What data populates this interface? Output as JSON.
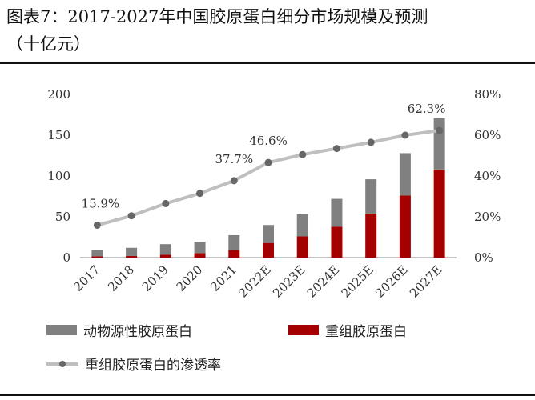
{
  "title": {
    "line1": "图表7：2017-2027年中国胶原蛋白细分市场规模及预测",
    "line2": "（十亿元）"
  },
  "chart_data": {
    "type": "bar",
    "stacked": true,
    "categories": [
      "2017",
      "2018",
      "2019",
      "2020",
      "2021",
      "2022E",
      "2023E",
      "2024E",
      "2025E",
      "2026E",
      "2027E"
    ],
    "series": [
      {
        "name": "动物源性胶原蛋白",
        "type": "bar",
        "axis": "left",
        "color": "#808080",
        "values": [
          8,
          10,
          13,
          14,
          18,
          22,
          27,
          34,
          42,
          52,
          63
        ]
      },
      {
        "name": "重组胶原蛋白",
        "type": "bar",
        "axis": "left",
        "color": "#a50000",
        "values": [
          1.5,
          2,
          3.5,
          5.5,
          9.5,
          18,
          26,
          38,
          54,
          76,
          108
        ]
      },
      {
        "name": "重组胶原蛋白的渗透率",
        "type": "line",
        "axis": "right",
        "color": "#bfbfbf",
        "marker_color": "#666666",
        "values": [
          15.9,
          20.5,
          26.5,
          31.5,
          37.7,
          46.6,
          50.5,
          53.5,
          56.5,
          60.0,
          62.3
        ]
      }
    ],
    "data_labels": [
      {
        "index": 0,
        "text": "15.9%"
      },
      {
        "index": 4,
        "text": "37.7%"
      },
      {
        "index": 5,
        "text": "46.6%"
      },
      {
        "index": 10,
        "text": "62.3%"
      }
    ],
    "y_left": {
      "min": 0,
      "max": 200,
      "ticks": [
        "0",
        "50",
        "100",
        "150",
        "200"
      ],
      "tick_values": [
        0,
        50,
        100,
        150,
        200
      ]
    },
    "y_right": {
      "min": 0,
      "max": 80,
      "ticks": [
        "0%",
        "20%",
        "40%",
        "60%",
        "80%"
      ],
      "tick_values": [
        0,
        20,
        40,
        60,
        80
      ]
    },
    "grid": false,
    "legend_position": "bottom"
  }
}
